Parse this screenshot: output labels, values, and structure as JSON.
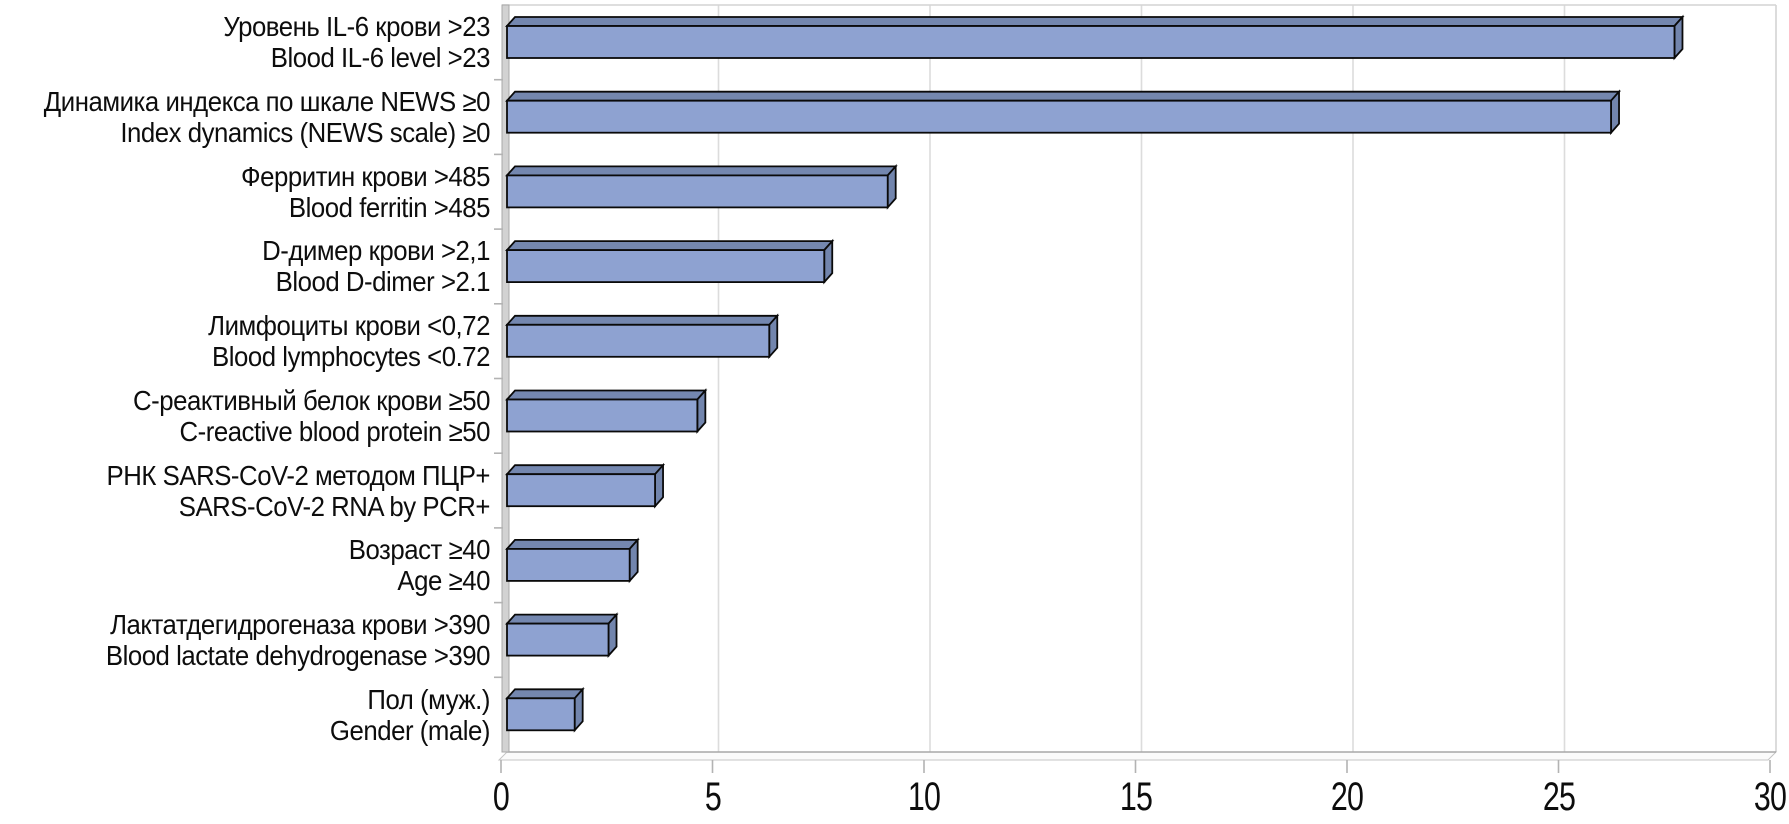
{
  "chart_data": {
    "type": "bar",
    "orientation": "horizontal",
    "title": "",
    "xlabel": "",
    "ylabel": "",
    "xlim": [
      0,
      30
    ],
    "x_ticks": [
      "0",
      "5",
      "10",
      "15",
      "20",
      "25",
      "30"
    ],
    "grid": true,
    "legend": false,
    "bar_style": "3d",
    "categories": [
      {
        "ru": "Уровень IL-6 крови >23",
        "en": "Blood IL-6 level >23"
      },
      {
        "ru": "Динамика индекса по шкале NEWS ≥0",
        "en": "Index dynamics (NEWS scale) ≥0"
      },
      {
        "ru": "Ферритин крови >485",
        "en": "Blood ferritin >485"
      },
      {
        "ru": "D-димер крови >2,1",
        "en": "Blood D-dimer >2.1"
      },
      {
        "ru": "Лимфоциты крови <0,72",
        "en": "Blood lymphocytes <0.72"
      },
      {
        "ru": "С-реактивный белок крови ≥50",
        "en": "C-reactive blood protein ≥50"
      },
      {
        "ru": "РНК SARS-CoV-2 методом ПЦР+",
        "en": "SARS-CoV-2 RNA by PCR+"
      },
      {
        "ru": "Возраст ≥40",
        "en": "Age ≥40"
      },
      {
        "ru": "Лактатдегидрогеназа крови >390",
        "en": "Blood lactate dehydrogenase >390"
      },
      {
        "ru": "Пол (муж.)",
        "en": "Gender (male)"
      }
    ],
    "values": [
      27.6,
      26.1,
      9.0,
      7.5,
      6.2,
      4.5,
      3.5,
      2.9,
      2.4,
      1.6
    ],
    "colors": {
      "bar_face": "#8EA2D1",
      "bar_top": "#7487AF",
      "bar_side": "#7285AD",
      "bar_outline": "#0a0a0a",
      "gridline": "#DCDCDC",
      "plot_border": "#D4D4D4",
      "axis_wall_fill": "#D2D2D2",
      "axis_wall_edge": "#A8A8A8",
      "tick": "#B3B3B3",
      "text": "#0D0D0D",
      "background": "#FFFFFF"
    }
  }
}
